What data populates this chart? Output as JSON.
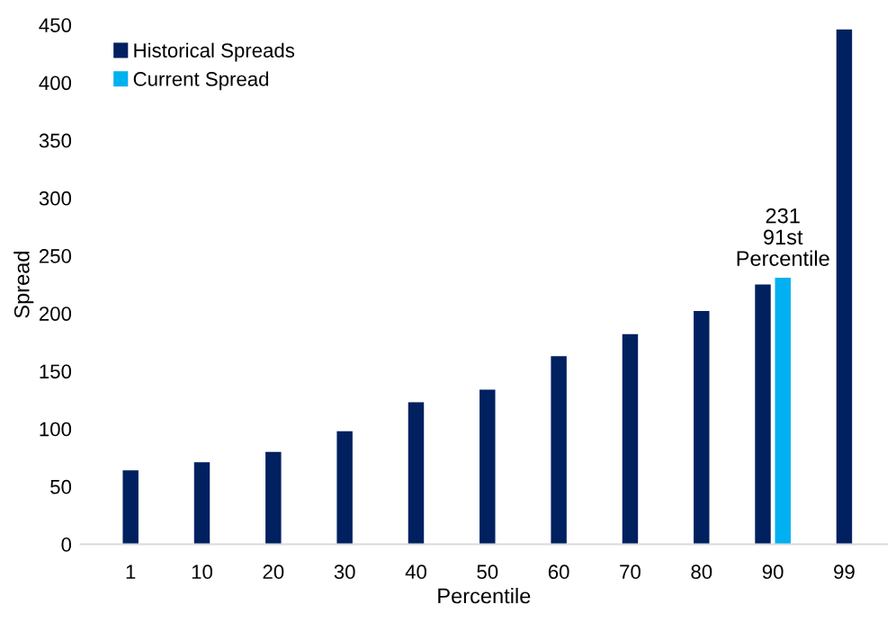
{
  "chart_data": {
    "type": "bar",
    "xlabel": "Percentile",
    "ylabel": "Spread",
    "categories": [
      "1",
      "10",
      "20",
      "30",
      "40",
      "50",
      "60",
      "70",
      "80",
      "90",
      "99"
    ],
    "series": [
      {
        "name": "Historical Spreads",
        "color": "#002060",
        "values": [
          64,
          71,
          80,
          98,
          123,
          134,
          163,
          182,
          202,
          225,
          446
        ]
      },
      {
        "name": "Current Spread",
        "color": "#00b0f0",
        "values": [
          null,
          null,
          null,
          null,
          null,
          null,
          null,
          null,
          null,
          231,
          null
        ]
      }
    ],
    "ylim": [
      0,
      450
    ],
    "yticks": [
      0,
      50,
      100,
      150,
      200,
      250,
      300,
      350,
      400,
      450
    ],
    "annotations": [
      {
        "text": "231\n91st\nPercentile",
        "x": "90",
        "y": 231
      }
    ],
    "legend": "top left",
    "grid": false
  }
}
